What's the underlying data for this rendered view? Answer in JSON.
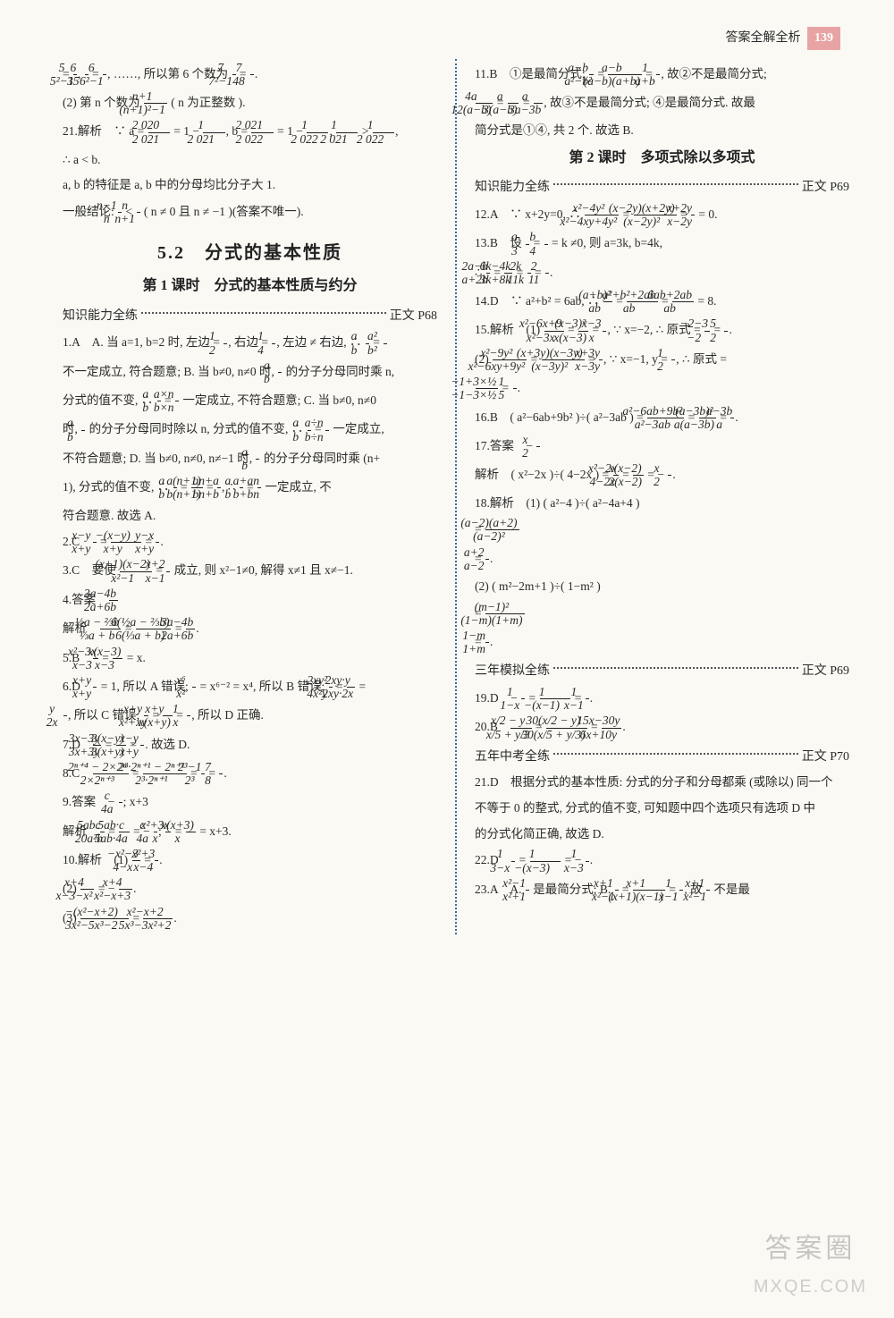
{
  "page": {
    "header_text": "答案全解全析",
    "number": "139"
  },
  "watermark": {
    "l1": "答案圈",
    "l2": "MXQE.COM"
  },
  "left": {
    "pre": [
      "= <FR>5|5²−1</FR>, <FR>6|35</FR> = <FR>6|6²−1</FR>, ……, 所以第 6 个数为 <FR>7|7²−1</FR> = <FR>7|48</FR>.",
      "(2) 第 n 个数为 <FR>n+1|(n+1)²−1</FR> ( n 为正整数 ).",
      "21.解析　∵ a = <FR>2 020|2 021</FR> = 1 − <FR>1|2 021</FR>, b = <FR>2 021|2 022</FR> = 1 − <FR>1|2 022</FR>, <FR>1|2 021</FR> > <FR>1|2 022</FR>,",
      "∴ a < b.",
      "a, b 的特征是 a, b 中的分母均比分子大 1.",
      "一般结论: <FR>n−1|n</FR> < <FR>n|n+1</FR> ( n ≠ 0 且 n ≠ −1 )(答案不唯一)."
    ],
    "section": "5.2　分式的基本性质",
    "sub": "第 1 课时　分式的基本性质与约分",
    "practice1": {
      "label": "知识能力全练",
      "ref": "正文 P68"
    },
    "items": [
      "1.A　A. 当 a=1, b=2 时, 左边 = <FR>1|2</FR>, 右边 = <FR>1|4</FR>, 左边 ≠ 右边, ∴ <FR>a|b</FR> = <FR>a²|b²</FR>",
      "不一定成立, 符合题意; B. 当 b≠0, n≠0 时, <FR>a|b</FR> 的分子分母同时乘 n,",
      "分式的值不变, ∴ <FR>a|b</FR> = <FR>a×n|b×n</FR> 一定成立, 不符合题意; C. 当 b≠0, n≠0",
      "时, <FR>a|b</FR> 的分子分母同时除以 n, 分式的值不变, ∴ <FR>a|b</FR> = <FR>a÷n|b÷n</FR> 一定成立,",
      "不符合题意; D. 当 b≠0, n≠0, n≠−1 时, <FR>a|b</FR> 的分子分母同时乘 (n+",
      "1), 分式的值不变, ∴ <FR>a|b</FR> = <FR>a(n+1)|b(n+1)</FR> = <FR>an+a|bn+b</FR>, ∴ <FR>a|b</FR> = <FR>a+an|b+bn</FR> 一定成立, 不",
      "符合题意. 故选 A.",
      "2.C　<FR>x−y|x+y</FR> = <FR>−(x−y)|x+y</FR> = <FR>y−x|x+y</FR>.",
      "3.C　要使 <FR>(x+1)(x−2)|x²−1</FR> = <FR>x+2|x−1</FR> 成立, 则 x²−1≠0, 解得 x≠1 且 x≠−1.",
      "4.答案　<FR>3a−4b|2a+6b</FR>",
      "解析　<FR>½a − ⅔b|⅓a + b</FR> = <FR>6(½a − ⅔b)|6(⅓a + b)</FR> = <FR>3a−4b|2a+6b</FR>.",
      "5.B　<FR>x²−3x|x−3</FR> = <FR>x(x−3)|x−3</FR> = x.",
      "6.D　<FR>x+y|x+y</FR> = 1, 所以 A 错误; <FR>x⁶|x²</FR> = x⁶⁻² = x⁴, 所以 B 错误; <FR>2xy²|4x²y</FR> = <FR>2xy·y|2xy·2x</FR> =",
      "<FR>y|2x</FR>, 所以 C 错误; <FR>x+y|x²+xy</FR> = <FR>x+y|x(x+y)</FR> = <FR>1|x</FR>, 所以 D 正确.",
      "7.D　<FR>3x−3y|3x+3y</FR> = <FR>3(x−y)|3(x+y)</FR> = <FR>x−y|x+y</FR>. 故选 D.",
      "8.C　<FR>2ⁿ⁺⁴ − 2×2ⁿ|2×2ⁿ⁺³</FR> = <FR>2³·2ⁿ⁺¹ − 2ⁿ⁺¹|2³·2ⁿ⁺¹</FR> = <FR>2³−1|2³</FR> = <FR>7|8</FR>.",
      "9.答案　− <FR>c|4a</FR>; x+3",
      "解析　<FR>5abc|20a²b</FR> = <FR>5ab·c|5ab·4a</FR> = − <FR>c|4a</FR>; <FR>x²+3x|x</FR> = <FR>x(x+3)|x</FR> = x+3.",
      "10.解析　(1) <FR>−x²−3|4−x</FR> = <FR>x²+3|x−4</FR>.",
      "(2) <FR>x+4|x−3−x²</FR> = − <FR>x+4|x²−x+3</FR>.",
      "(3) <FR>−(x²−x+2)|3x²−5x³−2</FR> = <FR>x²−x+2|5x³−3x²+2</FR>."
    ]
  },
  "right": {
    "pre": [
      "11.B　①是最简分式; <FR>a−b|a²−b²</FR> = <FR>a−b|(a−b)(a+b)</FR> = <FR>1|a+b</FR>, 故②不是最简分式;",
      "<FR>4a|12(a−b)</FR> = <FR>a|3(a−b)</FR> = <FR>a|3a−3b</FR>, 故③不是最简分式; ④是最简分式. 故最",
      "简分式是①④, 共 2 个. 故选 B."
    ],
    "sub": "第 2 课时　多项式除以多项式",
    "practice1": {
      "label": "知识能力全练",
      "ref": "正文 P69"
    },
    "items1": [
      "12.A　∵ x+2y=0, ∴ <FR>x²−4y²|x²−4xy+4y²</FR> = <FR>(x−2y)(x+2y)|(x−2y)²</FR> = <FR>x+2y|x−2y</FR> = 0.",
      "13.B　设 <FR>a|3</FR> = <FR>b|4</FR> = k ≠0, 则 a=3k, b=4k,",
      "∴ <FR>2a−b|a+2b</FR> = <FR>6k−4k|3k+8k</FR> = <FR>2k|11k</FR> = <FR>2|11</FR>.",
      "14.D　∵ a²+b² = 6ab, ∴ <FR>(a+b)²|ab</FR> = <FR>a²+b²+2ab|ab</FR> = <FR>6ab+2ab|ab</FR> = 8.",
      "15.解析　(1) <FR>x²−6x+9|x²−3x</FR> = <FR>(x−3)²|x(x−3)</FR> = <FR>x−3|x</FR>, ∵ x=−2, ∴ 原式 = <FR>−2−3|−2</FR> = <FR>5|2</FR>.",
      "(2) <FR>x²−9y²|x²−6xy+9y²</FR> = <FR>(x+3y)(x−3y)|(x−3y)²</FR> = <FR>x+3y|x−3y</FR>, ∵ x=−1, y = <FR>1|2</FR>, ∴ 原式 =",
      "<FR>−1+3×½|−1−3×½</FR> = <FR>1|5</FR>.",
      "16.B　( a²−6ab+9b² )÷( a²−3ab ) = <FR>a²−6ab+9b²|a²−3ab</FR> = <FR>(a−3b)²|a(a−3b)</FR> = <FR>a−3b|a</FR>.",
      "17.答案　− <FR>x|2</FR>",
      "解析　( x²−2x )÷( 4−2x ) = <FR>x²−2x|4−2x</FR> = <FR>x(x−2)|2(x−2)</FR> = − <FR>x|2</FR>.",
      "18.解析　(1) ( a²−4 )÷( a²−4a+4 )",
      "= <FR>(a−2)(a+2)|(a−2)²</FR>",
      "= <FR>a+2|a−2</FR>.",
      "(2) ( m²−2m+1 )÷( 1−m² )",
      "= <FR>(m−1)²|(1−m)(1+m)</FR>",
      "= <FR>1−m|1+m</FR>."
    ],
    "practice2": {
      "label": "三年模拟全练",
      "ref": "正文 P69"
    },
    "items2": [
      "19.D　− <FR>1|1−x</FR> = <FR>1|−(x−1)</FR> = <FR>1|x−1</FR>.",
      "20.B　<FR>x/2 − y|x/5 + y/3</FR> = <FR>30(x/2 − y)|30(x/5 + y/3)</FR> = <FR>15x−30y|6x+10y</FR>."
    ],
    "practice3": {
      "label": "五年中考全练",
      "ref": "正文 P70"
    },
    "items3": [
      "21.D　根据分式的基本性质: 分式的分子和分母都乘 (或除以) 同一个",
      "不等于 0 的整式, 分式的值不变, 可知题中四个选项只有选项 D 中",
      "的分式化简正确, 故选 D.",
      "22.D　<FR>1|3−x</FR> = <FR>1|−(x−3)</FR> = − <FR>1|x−3</FR>.",
      "23.A　A. <FR>x²−1|x²+1</FR> 是最简分式; B. <FR>x+1|x²−1</FR> = <FR>x+1|(x+1)(x−1)</FR> = <FR>1|x−1</FR>, 故 <FR>x+1|x²−1</FR> 不是最"
    ]
  }
}
